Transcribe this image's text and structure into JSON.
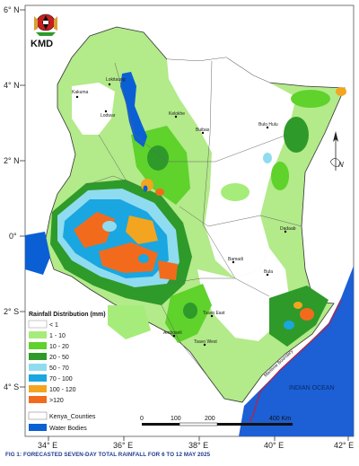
{
  "agency": {
    "acronym": "KMD",
    "logo": "kenya-coat-of-arms"
  },
  "lat_labels": [
    "6° N",
    "4° N",
    "2° N",
    "0°",
    "2° S",
    "4° S"
  ],
  "lon_labels": [
    "34° E",
    "36° E",
    "38° E",
    "40° E",
    "42° E"
  ],
  "towns": [
    "Lokitaung",
    "Kakuma",
    "Lodwar",
    "Kelokhe",
    "Buibas",
    "Bulo Hulu",
    "Dadaab",
    "Bamadi",
    "Bula",
    "Tsavo East",
    "Tsavo West",
    "Amboseli"
  ],
  "legend": {
    "title": "Rainfall Distribution (mm)",
    "items": [
      {
        "label": "< 1",
        "color": "#ffffff"
      },
      {
        "label": "1 - 10",
        "color": "#a6ec7a"
      },
      {
        "label": "10 - 20",
        "color": "#5fd22c"
      },
      {
        "label": "20 - 50",
        "color": "#2e9a2a"
      },
      {
        "label": "50 - 70",
        "color": "#8fdcf0"
      },
      {
        "label": "70 - 100",
        "color": "#1aa6e0"
      },
      {
        "label": "100 - 120",
        "color": "#f3a51f"
      },
      {
        "label": ">120",
        "color": "#f26b1c"
      },
      {
        "label": "Kenya_Counties",
        "color": "#ffffff"
      },
      {
        "label": "Water Bodies",
        "color": "#0b5fd4"
      }
    ]
  },
  "ocean_label": "INDIAN OCEAN",
  "boundary_label": "Maritime Boundary",
  "north_arrow": "N",
  "scalebar": {
    "ticks": [
      "0",
      "100",
      "200",
      "400 Km"
    ]
  },
  "caption": "FIG 1: FORECASTED SEVEN-DAY TOTAL RAINFALL FOR 6 TO 12 MAY 2025"
}
